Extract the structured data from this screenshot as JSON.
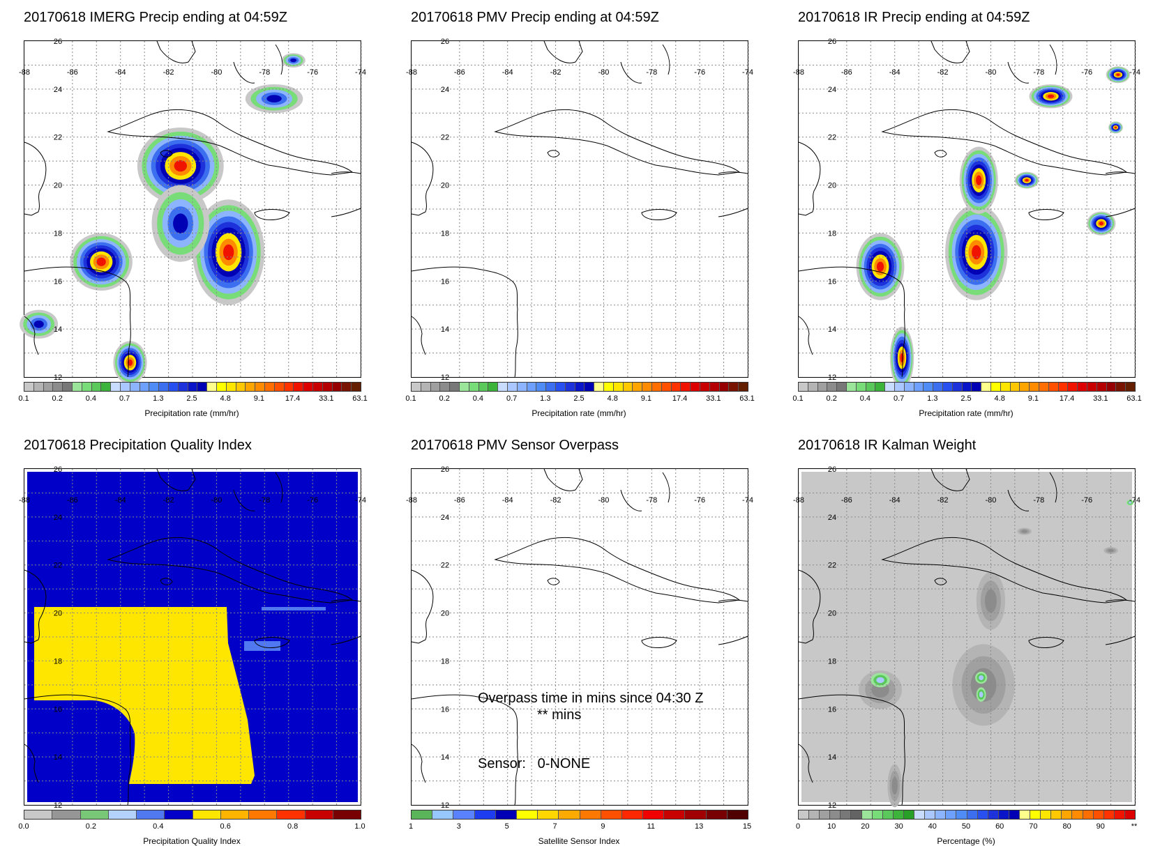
{
  "panels": [
    {
      "id": "imerg",
      "title": "20170618 IMERG Precip ending at 04:59Z",
      "scale_label": "Precipitation rate (mm/hr)",
      "ticks": [
        "0.1",
        "0.2",
        "0.4",
        "0.7",
        "1.3",
        "2.5",
        "4.8",
        "9.1",
        "17.4",
        "33.1",
        "63.1"
      ],
      "palette": "precip",
      "field": "imerg"
    },
    {
      "id": "pmv",
      "title": "20170618 PMV Precip ending at 04:59Z",
      "scale_label": "Precipitation rate (mm/hr)",
      "ticks": [
        "0.1",
        "0.2",
        "0.4",
        "0.7",
        "1.3",
        "2.5",
        "4.8",
        "9.1",
        "17.4",
        "33.1",
        "63.1"
      ],
      "palette": "precip",
      "field": "none"
    },
    {
      "id": "ir",
      "title": "20170618 IR Precip ending at 04:59Z",
      "scale_label": "Precipitation rate (mm/hr)",
      "ticks": [
        "0.1",
        "0.2",
        "0.4",
        "0.7",
        "1.3",
        "2.5",
        "4.8",
        "9.1",
        "17.4",
        "33.1",
        "63.1"
      ],
      "palette": "precip",
      "field": "ir"
    },
    {
      "id": "pqi",
      "title": "20170618 Precipitation Quality Index",
      "scale_label": "Precipitation Quality Index",
      "ticks": [
        "0.0",
        "0.2",
        "0.4",
        "0.6",
        "0.8",
        "1.0"
      ],
      "palette": "pqi",
      "field": "pqi"
    },
    {
      "id": "overpass",
      "title": "20170618 PMV Sensor Overpass",
      "scale_label": "Satellite Sensor Index",
      "ticks": [
        "1",
        "3",
        "5",
        "7",
        "9",
        "11",
        "13",
        "15"
      ],
      "palette": "sensor",
      "field": "none",
      "overpass_line1": "Overpass time in mins since 04:30 Z",
      "overpass_line2": "** mins",
      "sensor_text": "Sensor:   0-NONE"
    },
    {
      "id": "kalman",
      "title": "20170618 IR Kalman Weight",
      "scale_label": "Percentage (%)",
      "ticks": [
        "0",
        "10",
        "20",
        "30",
        "40",
        "50",
        "60",
        "70",
        "80",
        "90",
        "**"
      ],
      "palette": "percent",
      "field": "kalman"
    }
  ],
  "map": {
    "lon_labels": [
      "-88",
      "-86",
      "-84",
      "-82",
      "-80",
      "-78",
      "-76",
      "-74"
    ],
    "lat_labels": [
      "26",
      "24",
      "22",
      "20",
      "18",
      "16",
      "14",
      "12"
    ]
  },
  "palettes": {
    "precip": [
      "#c8c8c8",
      "#b4b4b4",
      "#a0a0a0",
      "#8c8c8c",
      "#787878",
      "#9be59b",
      "#78dc78",
      "#5ac85a",
      "#3cb43c",
      "#c8dcff",
      "#aac8ff",
      "#8cb4ff",
      "#6ea0ff",
      "#508cf5",
      "#3c6ef0",
      "#2850f0",
      "#1e32dc",
      "#0a14c8",
      "#0000b4",
      "#ffff8c",
      "#ffff00",
      "#ffe600",
      "#ffc800",
      "#ffa500",
      "#ff8c00",
      "#ff6e00",
      "#ff5000",
      "#ff3200",
      "#f01400",
      "#dc0000",
      "#c80000",
      "#b40000",
      "#960000",
      "#781400",
      "#641e00"
    ],
    "pqi": [
      "#c8c8c8",
      "#969696",
      "#78c878",
      "#b4d2ff",
      "#5078f0",
      "#0000c8",
      "#ffe600",
      "#ffb400",
      "#ff7800",
      "#ff3200",
      "#c80000",
      "#780000"
    ],
    "sensor": [
      "#5ab45a",
      "#96c8ff",
      "#5a82ff",
      "#1e3cf0",
      "#0000b4",
      "#ffff00",
      "#ffd700",
      "#ffaa00",
      "#ff7800",
      "#ff5000",
      "#ff2800",
      "#f00000",
      "#c80000",
      "#a00000",
      "#780000",
      "#500000"
    ],
    "percent": [
      "#c8c8c8",
      "#b4b4b4",
      "#a0a0a0",
      "#8c8c8c",
      "#787878",
      "#646464",
      "#9be59b",
      "#78dc78",
      "#5ac85a",
      "#3cb43c",
      "#28a028",
      "#c8dcff",
      "#aac8ff",
      "#8cb4ff",
      "#6ea0ff",
      "#508cf5",
      "#3c6ef0",
      "#2850f0",
      "#1e32dc",
      "#0a14c8",
      "#0000b4",
      "#ffff8c",
      "#ffff00",
      "#ffe600",
      "#ffc800",
      "#ffa500",
      "#ff8c00",
      "#ff6e00",
      "#ff5000",
      "#ff3200",
      "#f01400",
      "#dc0000"
    ]
  }
}
